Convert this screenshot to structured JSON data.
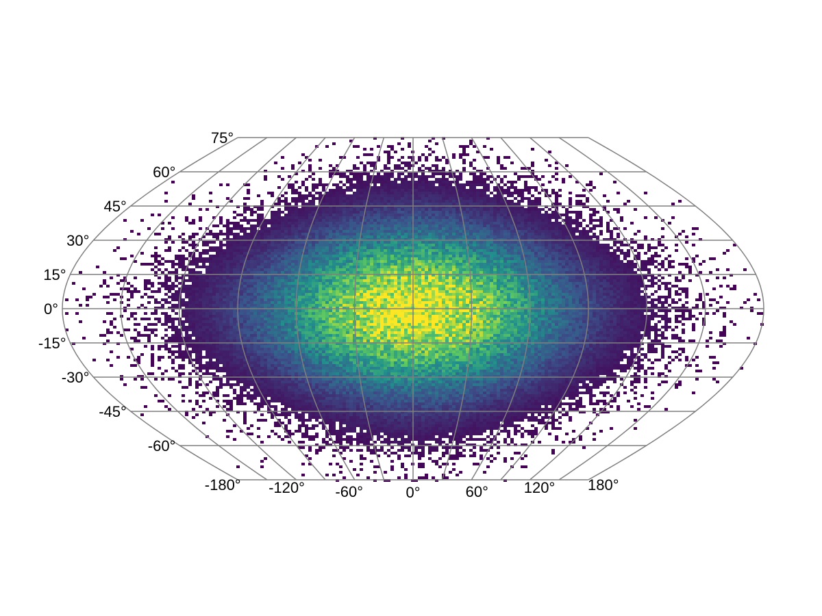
{
  "chart_data": {
    "type": "heatmap",
    "title": "",
    "xlabel": "",
    "ylabel": "",
    "projection": "pseudocylindrical",
    "xlim": [
      -180,
      180
    ],
    "ylim": [
      -75,
      75
    ],
    "grid": true,
    "grid_color": "#7f7f7f",
    "colormap": "viridis",
    "colormap_stops": [
      "#440154",
      "#3b528b",
      "#21918c",
      "#5ec962",
      "#fde725"
    ],
    "distribution": {
      "center_lon": 0,
      "center_lat": 0,
      "spread_lon": 55,
      "spread_lat": 26
    },
    "lat_tick_labels": [
      {
        "value": 75,
        "label": "75°"
      },
      {
        "value": 60,
        "label": "60°"
      },
      {
        "value": 45,
        "label": "45°"
      },
      {
        "value": 30,
        "label": "30°"
      },
      {
        "value": 15,
        "label": "15°"
      },
      {
        "value": 0,
        "label": "0°"
      },
      {
        "value": -15,
        "label": "-15°"
      },
      {
        "value": -30,
        "label": "-30°"
      },
      {
        "value": -45,
        "label": "-45°"
      },
      {
        "value": -60,
        "label": "-60°"
      }
    ],
    "lon_tick_labels": [
      {
        "value": -180,
        "label": "-180°"
      },
      {
        "value": -120,
        "label": "-120°"
      },
      {
        "value": -60,
        "label": "-60°"
      },
      {
        "value": 0,
        "label": "0°"
      },
      {
        "value": 60,
        "label": "60°"
      },
      {
        "value": 120,
        "label": "120°"
      },
      {
        "value": 180,
        "label": "180°"
      }
    ]
  }
}
